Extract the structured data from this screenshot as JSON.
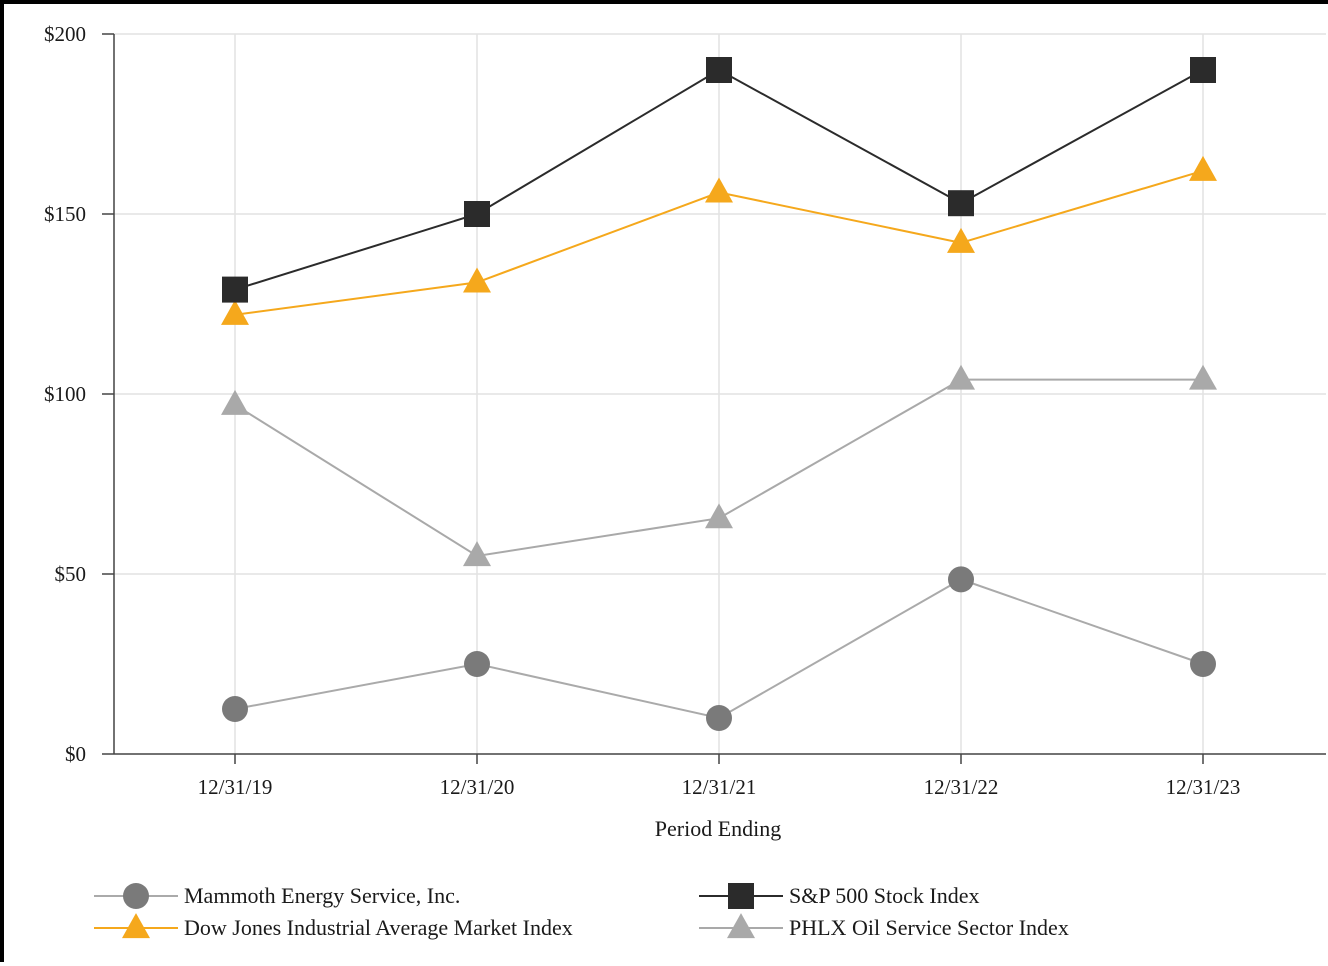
{
  "chart_data": {
    "type": "line",
    "title": "",
    "xlabel": "Period Ending",
    "ylabel": "",
    "categories": [
      "12/31/19",
      "12/31/20",
      "12/31/21",
      "12/31/22",
      "12/31/23"
    ],
    "ylim": [
      0,
      200
    ],
    "yticks": [
      0,
      50,
      100,
      150,
      200
    ],
    "ytick_labels": [
      "$0",
      "$50",
      "$100",
      "$150",
      "$200"
    ],
    "grid": true,
    "legend_position": "bottom",
    "series": [
      {
        "name": "Mammoth Energy Service, Inc.",
        "values": [
          12.5,
          25,
          10,
          48.5,
          25
        ],
        "color": "#7a7a7a",
        "line_color": "#aaaaaa",
        "marker": "circle"
      },
      {
        "name": "S&P 500 Stock Index",
        "values": [
          129,
          150,
          190,
          153,
          190
        ],
        "color": "#2b2b2b",
        "line_color": "#2b2b2b",
        "marker": "square"
      },
      {
        "name": "Dow Jones Industrial Average Market Index",
        "values": [
          122,
          131,
          156,
          142,
          162
        ],
        "color": "#f5a81c",
        "line_color": "#f5a81c",
        "marker": "triangle"
      },
      {
        "name": "PHLX Oil Service Sector Index",
        "values": [
          97,
          55,
          65.5,
          104,
          104
        ],
        "color": "#a9a9a9",
        "line_color": "#a9a9a9",
        "marker": "triangle"
      }
    ]
  }
}
